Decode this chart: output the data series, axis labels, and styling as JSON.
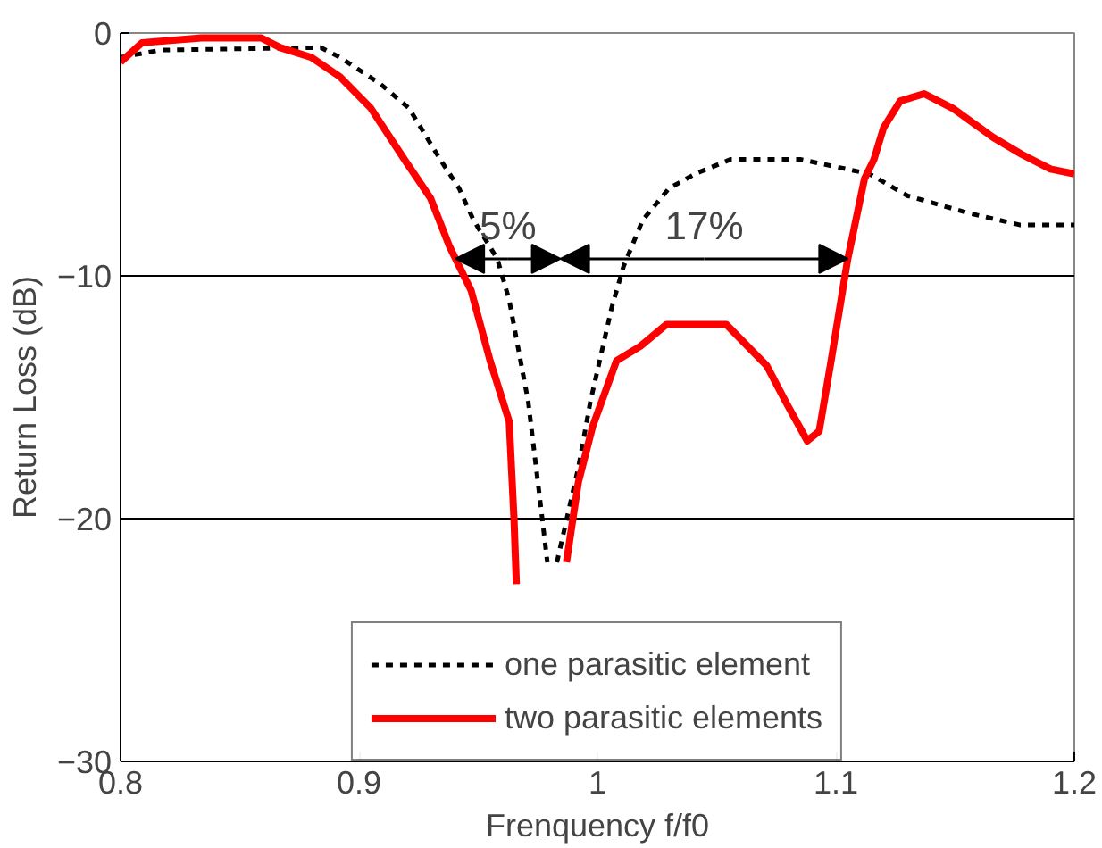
{
  "chart_data": {
    "type": "line",
    "xlabel": "Frenquency f/f0",
    "ylabel": "Return Loss (dB)",
    "xlim": [
      0.8,
      1.2
    ],
    "ylim": [
      -30,
      0
    ],
    "xticks": [
      0.8,
      0.9,
      {
        "value": 1.0,
        "label": "1"
      },
      1.1,
      1.2
    ],
    "yticks": [
      -30,
      -20,
      -10,
      0
    ],
    "grid": "y",
    "legend": "bottom",
    "series": [
      {
        "name": "one parasitic element",
        "color": "#000000",
        "line_style": "dotted",
        "x": [
          0.8,
          0.817,
          0.884,
          0.892,
          0.909,
          0.921,
          0.934,
          0.942,
          0.948,
          0.958,
          0.963,
          0.971,
          0.976,
          0.979,
          0.981,
          0.983,
          0.992,
          0.997,
          1.006,
          1.011,
          1.019,
          1.03,
          1.041,
          1.056,
          1.085,
          1.114,
          1.13,
          1.155,
          1.177,
          1.2
        ],
        "values": [
          -1.0,
          -0.7,
          -0.6,
          -1.0,
          -2.1,
          -3.1,
          -5.2,
          -6.4,
          -7.7,
          -9.3,
          -11.0,
          -15.2,
          -19.3,
          -21.8,
          null,
          -21.8,
          -17.9,
          -15.2,
          -11.3,
          -9.6,
          -7.7,
          -6.4,
          -5.8,
          -5.2,
          -5.2,
          -5.8,
          -6.7,
          -7.4,
          -7.9,
          -7.9
        ]
      },
      {
        "name": "two parasitic elements",
        "color": "#ff0000",
        "line_style": "solid",
        "x": [
          0.8,
          0.809,
          0.834,
          0.859,
          0.867,
          0.88,
          0.892,
          0.905,
          0.919,
          0.93,
          0.938,
          0.947,
          0.955,
          0.963,
          0.965,
          0.966,
          0.975,
          0.987,
          0.992,
          0.998,
          1.008,
          1.018,
          1.029,
          1.054,
          1.064,
          1.071,
          1.079,
          1.088,
          1.093,
          1.098,
          1.105,
          1.112,
          1.116,
          1.12,
          1.127,
          1.137,
          1.149,
          1.166,
          1.178,
          1.19,
          1.2
        ],
        "values": [
          -1.2,
          -0.4,
          -0.2,
          -0.2,
          -0.6,
          -1.0,
          -1.8,
          -3.1,
          -5.2,
          -6.8,
          -8.8,
          -10.6,
          -13.5,
          -16.0,
          -20.0,
          -22.7,
          null,
          -21.8,
          -18.5,
          -16.2,
          -13.5,
          -12.9,
          -12.0,
          -12.0,
          -13.0,
          -13.7,
          -15.2,
          -16.8,
          -16.4,
          -13.5,
          -9.3,
          -6.0,
          -5.2,
          -3.9,
          -2.8,
          -2.5,
          -3.1,
          -4.3,
          -5.0,
          -5.6,
          -5.8
        ]
      }
    ],
    "annotations": [
      {
        "text": "5%",
        "x": 0.9625,
        "y": -9.3
      },
      {
        "text": "17%",
        "x": 1.105,
        "y": -9.3
      }
    ]
  }
}
